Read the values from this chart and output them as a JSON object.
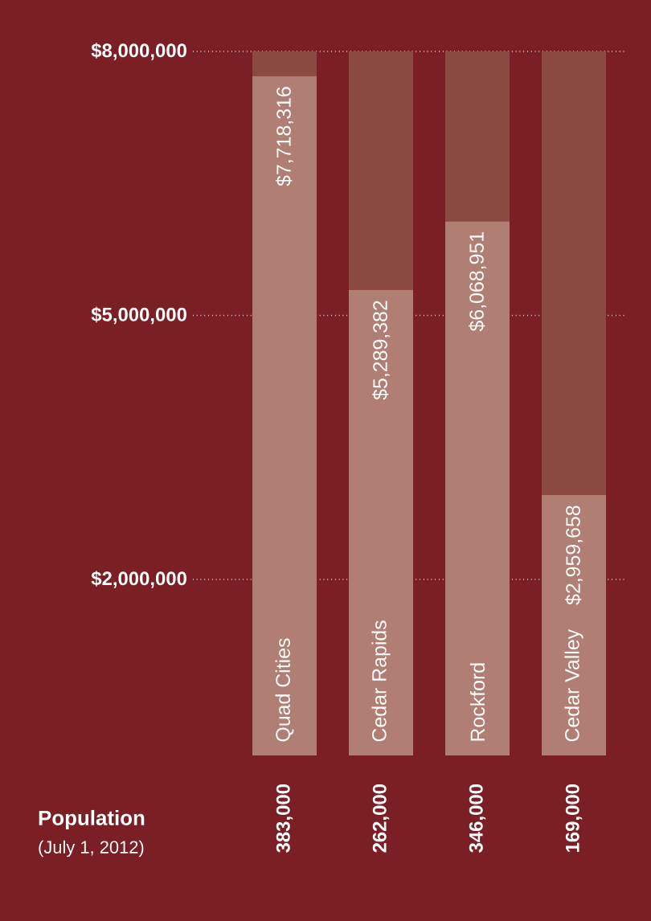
{
  "chart_data": {
    "type": "bar",
    "categories": [
      "Quad Cities",
      "Cedar Rapids",
      "Rockford",
      "Cedar Valley"
    ],
    "series": [
      {
        "color": "#b07e72",
        "values": [
          7718316,
          5289382,
          6068951,
          2959658
        ],
        "value_labels": [
          "$7,718,316",
          "$5,289,382",
          "$6,068,951",
          "$2,959,658"
        ]
      },
      {
        "color": "#8a4a41",
        "values": [
          281684,
          2710618,
          1931049,
          5040342
        ]
      }
    ],
    "stacked": true,
    "ylim": [
      0,
      8000000
    ],
    "yticks": [
      {
        "value": 2000000,
        "label": "$2,000,000"
      },
      {
        "value": 5000000,
        "label": "$5,000,000"
      },
      {
        "value": 8000000,
        "label": "$8,000,000"
      }
    ],
    "grid": "y",
    "annotations": [
      "Population",
      "(July 1, 2012)",
      "383,000",
      "262,000",
      "346,000",
      "169,000"
    ]
  }
}
